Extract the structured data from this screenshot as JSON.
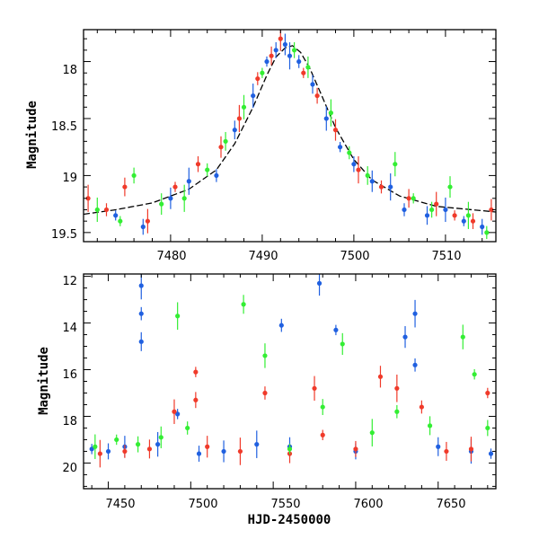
{
  "chart_data": [
    {
      "type": "scatter",
      "panel": "top",
      "xlabel": "",
      "ylabel": "Magnitude",
      "xlim": [
        7470.5,
        7515.5
      ],
      "ylim": [
        19.58,
        17.72
      ],
      "y_inverted": true,
      "xticks": [
        7480,
        7490,
        7500,
        7510
      ],
      "yticks": [
        18,
        18.5,
        19,
        19.5
      ],
      "series": [
        {
          "color": "#2060e0",
          "points": [
            [
              7474.0,
              19.35
            ],
            [
              7477.0,
              19.45
            ],
            [
              7480.0,
              19.2
            ],
            [
              7482.0,
              19.05
            ],
            [
              7485.0,
              19.0
            ],
            [
              7487.0,
              18.6
            ],
            [
              7489.0,
              18.3
            ],
            [
              7490.5,
              18.0
            ],
            [
              7491.5,
              17.9
            ],
            [
              7492.5,
              17.85
            ],
            [
              7493.0,
              17.95
            ],
            [
              7494.0,
              18.0
            ],
            [
              7495.5,
              18.2
            ],
            [
              7497.0,
              18.5
            ],
            [
              7498.5,
              18.75
            ],
            [
              7500.0,
              18.9
            ],
            [
              7502.0,
              19.05
            ],
            [
              7504.0,
              19.1
            ],
            [
              7505.5,
              19.3
            ],
            [
              7508.0,
              19.35
            ],
            [
              7510.0,
              19.3
            ],
            [
              7512.0,
              19.4
            ],
            [
              7514.0,
              19.45
            ]
          ]
        },
        {
          "color": "#f03a2a",
          "points": [
            [
              7471.0,
              19.2
            ],
            [
              7473.0,
              19.3
            ],
            [
              7475.0,
              19.1
            ],
            [
              7477.5,
              19.4
            ],
            [
              7480.5,
              19.1
            ],
            [
              7483.0,
              18.9
            ],
            [
              7485.5,
              18.75
            ],
            [
              7487.5,
              18.5
            ],
            [
              7489.5,
              18.15
            ],
            [
              7491.0,
              17.95
            ],
            [
              7492.0,
              17.8
            ],
            [
              7494.5,
              18.1
            ],
            [
              7496.0,
              18.3
            ],
            [
              7498.0,
              18.6
            ],
            [
              7500.5,
              18.95
            ],
            [
              7503.0,
              19.1
            ],
            [
              7506.0,
              19.2
            ],
            [
              7509.0,
              19.25
            ],
            [
              7511.0,
              19.35
            ],
            [
              7513.0,
              19.4
            ],
            [
              7515.0,
              19.3
            ]
          ]
        },
        {
          "color": "#33ee33",
          "points": [
            [
              7472.0,
              19.3
            ],
            [
              7474.5,
              19.4
            ],
            [
              7476.0,
              19.0
            ],
            [
              7479.0,
              19.25
            ],
            [
              7481.5,
              19.2
            ],
            [
              7484.0,
              18.95
            ],
            [
              7486.0,
              18.7
            ],
            [
              7488.0,
              18.4
            ],
            [
              7490.0,
              18.1
            ],
            [
              7493.5,
              17.9
            ],
            [
              7495.0,
              18.05
            ],
            [
              7497.5,
              18.45
            ],
            [
              7499.5,
              18.8
            ],
            [
              7501.5,
              19.0
            ],
            [
              7504.5,
              18.9
            ],
            [
              7506.5,
              19.2
            ],
            [
              7508.5,
              19.3
            ],
            [
              7510.5,
              19.1
            ],
            [
              7512.5,
              19.35
            ],
            [
              7514.5,
              19.5
            ]
          ]
        }
      ],
      "model_curve": [
        [
          7470.5,
          19.34
        ],
        [
          7474,
          19.3
        ],
        [
          7478,
          19.24
        ],
        [
          7482,
          19.12
        ],
        [
          7485,
          18.95
        ],
        [
          7487,
          18.72
        ],
        [
          7489,
          18.4
        ],
        [
          7490.5,
          18.12
        ],
        [
          7491.5,
          17.96
        ],
        [
          7492.5,
          17.88
        ],
        [
          7493.3,
          17.86
        ],
        [
          7494.2,
          17.92
        ],
        [
          7495.2,
          18.06
        ],
        [
          7496.5,
          18.3
        ],
        [
          7498,
          18.58
        ],
        [
          7500,
          18.86
        ],
        [
          7502,
          19.04
        ],
        [
          7505,
          19.18
        ],
        [
          7509,
          19.27
        ],
        [
          7515.5,
          19.32
        ]
      ]
    },
    {
      "type": "scatter",
      "panel": "bottom",
      "xlabel": "HJD-2450000",
      "ylabel": "Magnitude",
      "xlim": [
        7435,
        7685
      ],
      "ylim": [
        21.1,
        11.9
      ],
      "y_inverted": true,
      "xticks": [
        7450,
        7500,
        7550,
        7600,
        7650
      ],
      "yticks": [
        12,
        14,
        16,
        18,
        20
      ],
      "series": [
        {
          "color": "#2060e0",
          "points": [
            [
              7440,
              19.4
            ],
            [
              7450,
              19.5
            ],
            [
              7460,
              19.3
            ],
            [
              7470,
              12.4
            ],
            [
              7470,
              13.6
            ],
            [
              7470,
              14.8
            ],
            [
              7480,
              19.2
            ],
            [
              7492,
              17.9
            ],
            [
              7505,
              19.6
            ],
            [
              7520,
              19.5
            ],
            [
              7540,
              19.2
            ],
            [
              7555,
              14.1
            ],
            [
              7560,
              19.3
            ],
            [
              7578,
              12.3
            ],
            [
              7588,
              14.3
            ],
            [
              7600,
              19.5
            ],
            [
              7630,
              14.6
            ],
            [
              7636,
              13.6
            ],
            [
              7636,
              15.8
            ],
            [
              7650,
              19.3
            ],
            [
              7670,
              19.5
            ],
            [
              7682,
              19.6
            ]
          ]
        },
        {
          "color": "#f03a2a",
          "points": [
            [
              7445,
              19.6
            ],
            [
              7460,
              19.5
            ],
            [
              7475,
              19.4
            ],
            [
              7490,
              17.8
            ],
            [
              7503,
              16.1
            ],
            [
              7503,
              17.3
            ],
            [
              7510,
              19.3
            ],
            [
              7530,
              19.5
            ],
            [
              7545,
              17.0
            ],
            [
              7560,
              19.6
            ],
            [
              7575,
              16.8
            ],
            [
              7580,
              18.8
            ],
            [
              7600,
              19.4
            ],
            [
              7615,
              16.3
            ],
            [
              7625,
              16.8
            ],
            [
              7640,
              17.6
            ],
            [
              7655,
              19.5
            ],
            [
              7670,
              19.4
            ],
            [
              7680,
              17.0
            ]
          ]
        },
        {
          "color": "#33ee33",
          "points": [
            [
              7442,
              19.3
            ],
            [
              7455,
              19.0
            ],
            [
              7468,
              19.2
            ],
            [
              7482,
              18.9
            ],
            [
              7492,
              13.7
            ],
            [
              7498,
              18.5
            ],
            [
              7532,
              13.2
            ],
            [
              7545,
              15.4
            ],
            [
              7560,
              19.4
            ],
            [
              7580,
              17.6
            ],
            [
              7592,
              14.9
            ],
            [
              7610,
              18.7
            ],
            [
              7625,
              17.8
            ],
            [
              7645,
              18.4
            ],
            [
              7665,
              14.6
            ],
            [
              7672,
              16.2
            ],
            [
              7680,
              18.5
            ]
          ]
        }
      ]
    }
  ],
  "top": {
    "ylabel": "Magnitude",
    "xtick_labels": [
      "7480",
      "7490",
      "7500",
      "7510"
    ],
    "ytick_labels": [
      "18",
      "18.5",
      "19",
      "19.5"
    ]
  },
  "bottom": {
    "ylabel": "Magnitude",
    "xlabel": "HJD-2450000",
    "xtick_labels": [
      "7450",
      "7500",
      "7550",
      "7600",
      "7650"
    ],
    "ytick_labels": [
      "12",
      "14",
      "16",
      "18",
      "20"
    ]
  }
}
